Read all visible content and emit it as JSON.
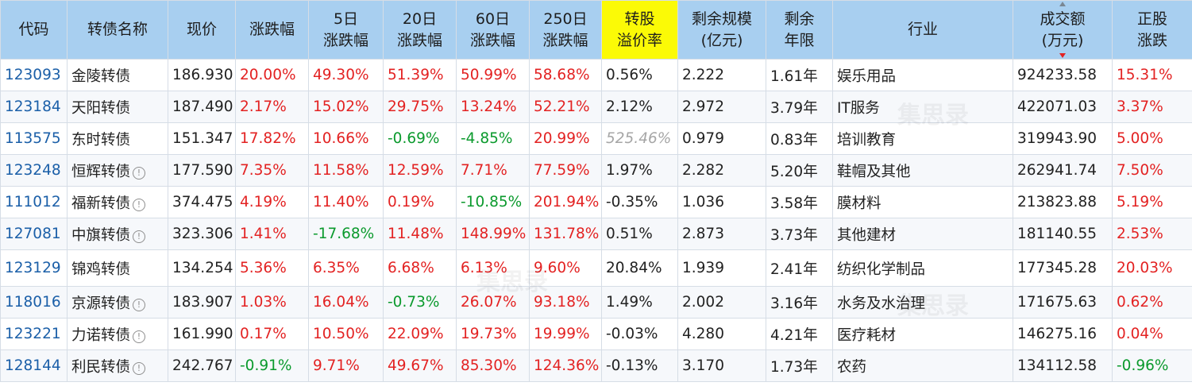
{
  "columns": [
    {
      "id": "code",
      "label": [
        "代码"
      ]
    },
    {
      "id": "name",
      "label": [
        "转债名称"
      ]
    },
    {
      "id": "price",
      "label": [
        "现价"
      ]
    },
    {
      "id": "chg",
      "label": [
        "涨跌幅"
      ]
    },
    {
      "id": "chg5",
      "label": [
        "5日",
        "涨跌幅"
      ]
    },
    {
      "id": "chg20",
      "label": [
        "20日",
        "涨跌幅"
      ]
    },
    {
      "id": "chg60",
      "label": [
        "60日",
        "涨跌幅"
      ]
    },
    {
      "id": "chg250",
      "label": [
        "250日",
        "涨跌幅"
      ]
    },
    {
      "id": "premium",
      "label": [
        "转股",
        "溢价率"
      ],
      "highlight": true
    },
    {
      "id": "scale",
      "label": [
        "剩余规模",
        "(亿元)"
      ]
    },
    {
      "id": "years",
      "label": [
        "剩余",
        "年限"
      ]
    },
    {
      "id": "industry",
      "label": [
        "行业"
      ]
    },
    {
      "id": "turnover",
      "label": [
        "成交额",
        "(万元)"
      ],
      "sorted": "desc"
    },
    {
      "id": "stock_chg",
      "label": [
        "正股",
        "涨跌"
      ]
    }
  ],
  "colors": {
    "up": "#e32222",
    "down": "#0b9a2d",
    "header": "#a8cff0",
    "highlight": "#fbfa06",
    "code": "#1b5fa8"
  },
  "icons": {
    "info": "info-circle-icon"
  },
  "watermark": {
    "text": "集思录",
    "subtext": "JISILU.CN"
  },
  "rows": [
    {
      "code": "123093",
      "name": "金陵转债",
      "info": false,
      "price": "186.930",
      "chg": "20.00%",
      "chg5": "49.30%",
      "chg20": "51.39%",
      "chg60": "50.99%",
      "chg250": "58.68%",
      "premium": "0.56%",
      "scale": "2.222",
      "years": "1.61年",
      "industry": "娱乐用品",
      "turnover": "924233.58",
      "stock_chg": "15.31%"
    },
    {
      "code": "123184",
      "name": "天阳转债",
      "info": false,
      "price": "187.490",
      "chg": "2.17%",
      "chg5": "15.02%",
      "chg20": "29.75%",
      "chg60": "13.24%",
      "chg250": "52.21%",
      "premium": "2.12%",
      "scale": "2.972",
      "years": "3.79年",
      "industry": "IT服务",
      "turnover": "422071.03",
      "stock_chg": "3.37%"
    },
    {
      "code": "113575",
      "name": "东时转债",
      "info": false,
      "price": "151.347",
      "chg": "17.82%",
      "chg5": "10.66%",
      "chg20": "-0.69%",
      "chg60": "-4.85%",
      "chg250": "20.99%",
      "premium": "525.46%",
      "premium_style": "gray",
      "scale": "0.979",
      "years": "0.83年",
      "industry": "培训教育",
      "turnover": "319943.90",
      "stock_chg": "5.00%"
    },
    {
      "code": "123248",
      "name": "恒辉转债",
      "info": true,
      "price": "177.590",
      "chg": "7.35%",
      "chg5": "11.58%",
      "chg20": "12.59%",
      "chg60": "7.71%",
      "chg250": "77.59%",
      "premium": "1.97%",
      "scale": "2.282",
      "years": "5.20年",
      "industry": "鞋帽及其他",
      "turnover": "262941.74",
      "stock_chg": "7.50%"
    },
    {
      "code": "111012",
      "name": "福新转债",
      "info": true,
      "price": "374.475",
      "chg": "4.19%",
      "chg5": "11.40%",
      "chg20": "0.19%",
      "chg60": "-10.85%",
      "chg250": "201.94%",
      "premium": "-0.35%",
      "scale": "1.036",
      "years": "3.58年",
      "industry": "膜材料",
      "turnover": "213823.88",
      "stock_chg": "5.19%"
    },
    {
      "code": "127081",
      "name": "中旗转债",
      "info": true,
      "price": "323.306",
      "chg": "1.41%",
      "chg5": "-17.68%",
      "chg20": "11.48%",
      "chg60": "148.99%",
      "chg250": "131.78%",
      "premium": "0.51%",
      "scale": "2.873",
      "years": "3.73年",
      "industry": "其他建材",
      "turnover": "181140.55",
      "stock_chg": "2.53%"
    },
    {
      "code": "123129",
      "name": "锦鸡转债",
      "info": false,
      "tall": true,
      "price": "134.254",
      "chg": "5.36%",
      "chg5": "6.35%",
      "chg20": "6.68%",
      "chg60": "6.13%",
      "chg250": "9.60%",
      "premium": "20.84%",
      "scale": "1.939",
      "years": "2.41年",
      "industry": "纺织化学制品",
      "turnover": "177345.28",
      "stock_chg": "20.03%"
    },
    {
      "code": "118016",
      "name": "京源转债",
      "info": true,
      "price": "183.907",
      "chg": "1.03%",
      "chg5": "16.04%",
      "chg20": "-0.73%",
      "chg60": "26.07%",
      "chg250": "93.18%",
      "premium": "1.49%",
      "scale": "2.002",
      "years": "3.16年",
      "industry": "水务及水治理",
      "turnover": "171675.63",
      "stock_chg": "0.62%"
    },
    {
      "code": "123221",
      "name": "力诺转债",
      "info": true,
      "price": "161.990",
      "chg": "0.17%",
      "chg5": "10.50%",
      "chg20": "22.09%",
      "chg60": "19.73%",
      "chg250": "19.99%",
      "premium": "-0.03%",
      "scale": "4.280",
      "years": "4.21年",
      "industry": "医疗耗材",
      "turnover": "146275.16",
      "stock_chg": "0.04%"
    },
    {
      "code": "128144",
      "name": "利民转债",
      "info": true,
      "price": "242.767",
      "chg": "-0.91%",
      "chg5": "9.71%",
      "chg20": "49.67%",
      "chg60": "85.30%",
      "chg250": "124.36%",
      "premium": "-0.13%",
      "scale": "3.170",
      "years": "1.73年",
      "industry": "农药",
      "turnover": "134112.58",
      "stock_chg": "-0.96%"
    }
  ]
}
